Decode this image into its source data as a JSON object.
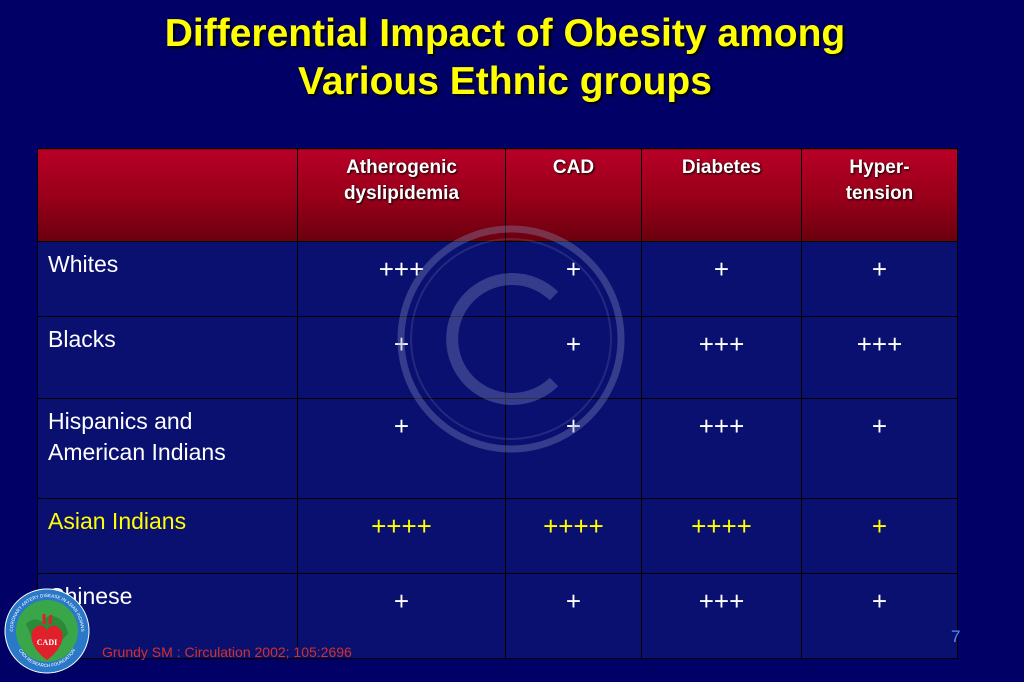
{
  "slide": {
    "title_line1": "Differential Impact of Obesity among",
    "title_line2": "Various Ethnic groups",
    "citation": "Grundy SM : Circulation 2002; 105:2696",
    "page_number": "7",
    "logo": {
      "top_arc_text": "CORONARY ARTERY DISEASE IN ASIAN INDIANS",
      "center_text": "CADI",
      "bottom_arc_text": "CADI RESEARCH FOUNDATION"
    }
  },
  "table": {
    "headers": [
      {
        "line1": "",
        "line2": ""
      },
      {
        "line1": "Atherogenic",
        "line2": "dyslipidemia"
      },
      {
        "line1": "CAD",
        "line2": ""
      },
      {
        "line1": "Diabetes",
        "line2": ""
      },
      {
        "line1": "Hyper-",
        "line2": "tension"
      }
    ],
    "rows": [
      {
        "label_line1": "Whites",
        "label_line2": "",
        "values": [
          "+++",
          "+",
          "+",
          "+"
        ]
      },
      {
        "label_line1": "Blacks",
        "label_line2": "",
        "values": [
          "+",
          "+",
          "+++",
          "+++"
        ]
      },
      {
        "label_line1": "Hispanics and",
        "label_line2": "American Indians",
        "values": [
          "+",
          "+",
          "+++",
          "+"
        ]
      },
      {
        "label_line1": "Asian Indians",
        "label_line2": "",
        "values": [
          "++++",
          "++++",
          "++++",
          "+"
        ]
      },
      {
        "label_line1": "Chinese",
        "label_line2": "",
        "values": [
          "+",
          "+",
          "+++",
          "+"
        ]
      }
    ]
  },
  "colors": {
    "background": "#000066",
    "title": "#ffff00",
    "header_band": "#960019",
    "highlight_row": "#ffff00",
    "citation": "#d4302a",
    "page_number": "#4d8cff"
  }
}
